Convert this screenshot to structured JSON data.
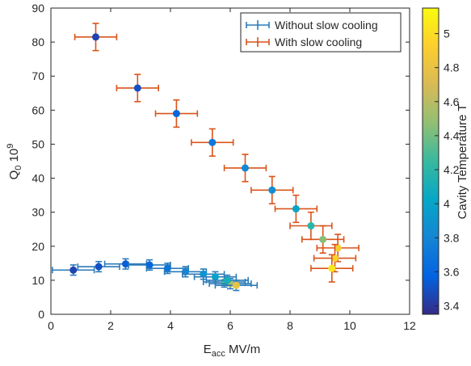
{
  "chart_data": {
    "type": "scatter",
    "xlabel": {
      "main": "E",
      "sub": "acc",
      "rest": " MV/m"
    },
    "ylabel": {
      "main": "Q",
      "sub": "0",
      "rest": " 10",
      "sup": "9"
    },
    "xlim": [
      0,
      12
    ],
    "ylim": [
      0,
      90
    ],
    "xticks": [
      0,
      2,
      4,
      6,
      8,
      10,
      12
    ],
    "yticks": [
      0,
      10,
      20,
      30,
      40,
      50,
      60,
      70,
      80,
      90
    ],
    "grid": false,
    "legend_placement": "top-right",
    "colorbar": {
      "label": "Cavity Temperature T",
      "range": [
        3.35,
        5.15
      ],
      "ticks": [
        3.4,
        3.6,
        3.8,
        4,
        4.2,
        4.4,
        4.6,
        4.8,
        5
      ],
      "colormap": "parula"
    },
    "series": [
      {
        "name": "Without slow cooling",
        "color": "#2b7bba",
        "points": [
          {
            "x": 0.75,
            "y": 13.0,
            "xerr": 0.7,
            "yerr": 1.5,
            "c": 3.45
          },
          {
            "x": 1.6,
            "y": 14.0,
            "xerr": 0.7,
            "yerr": 1.5,
            "c": 3.5
          },
          {
            "x": 2.5,
            "y": 14.8,
            "xerr": 0.7,
            "yerr": 1.5,
            "c": 3.55
          },
          {
            "x": 3.3,
            "y": 14.5,
            "xerr": 0.7,
            "yerr": 1.5,
            "c": 3.6
          },
          {
            "x": 3.9,
            "y": 13.5,
            "xerr": 0.7,
            "yerr": 1.5,
            "c": 3.7
          },
          {
            "x": 4.5,
            "y": 12.5,
            "xerr": 0.7,
            "yerr": 1.5,
            "c": 3.8
          },
          {
            "x": 5.1,
            "y": 11.8,
            "xerr": 0.7,
            "yerr": 1.5,
            "c": 3.9
          },
          {
            "x": 5.5,
            "y": 11.0,
            "xerr": 0.7,
            "yerr": 1.5,
            "c": 4.0
          },
          {
            "x": 5.8,
            "y": 9.5,
            "xerr": 0.7,
            "yerr": 1.5,
            "c": 4.3
          },
          {
            "x": 6.0,
            "y": 9.0,
            "xerr": 0.7,
            "yerr": 1.5,
            "c": 4.55
          },
          {
            "x": 6.2,
            "y": 8.5,
            "xerr": 0.7,
            "yerr": 1.5,
            "c": 4.8
          },
          {
            "x": 5.9,
            "y": 10.0,
            "xerr": 0.7,
            "yerr": 1.5,
            "c": 4.1
          }
        ]
      },
      {
        "name": "With slow cooling",
        "color": "#d9541a",
        "points": [
          {
            "x": 1.5,
            "y": 81.5,
            "xerr": 0.7,
            "yerr": 4,
            "c": 3.45
          },
          {
            "x": 2.9,
            "y": 66.5,
            "xerr": 0.7,
            "yerr": 4,
            "c": 3.5
          },
          {
            "x": 4.2,
            "y": 59.0,
            "xerr": 0.7,
            "yerr": 4,
            "c": 3.6
          },
          {
            "x": 5.4,
            "y": 50.5,
            "xerr": 0.7,
            "yerr": 4,
            "c": 3.7
          },
          {
            "x": 6.5,
            "y": 43.0,
            "xerr": 0.7,
            "yerr": 4,
            "c": 3.8
          },
          {
            "x": 7.4,
            "y": 36.5,
            "xerr": 0.7,
            "yerr": 4,
            "c": 3.85
          },
          {
            "x": 8.2,
            "y": 31.0,
            "xerr": 0.7,
            "yerr": 4,
            "c": 4.0
          },
          {
            "x": 8.7,
            "y": 26.0,
            "xerr": 0.7,
            "yerr": 4,
            "c": 4.2
          },
          {
            "x": 9.1,
            "y": 22.0,
            "xerr": 0.7,
            "yerr": 4,
            "c": 4.45
          },
          {
            "x": 9.6,
            "y": 19.5,
            "xerr": 0.7,
            "yerr": 4,
            "c": 4.9
          },
          {
            "x": 9.5,
            "y": 16.5,
            "xerr": 0.7,
            "yerr": 4,
            "c": 4.95
          },
          {
            "x": 9.4,
            "y": 13.5,
            "xerr": 0.7,
            "yerr": 4,
            "c": 5.05
          }
        ]
      }
    ]
  }
}
